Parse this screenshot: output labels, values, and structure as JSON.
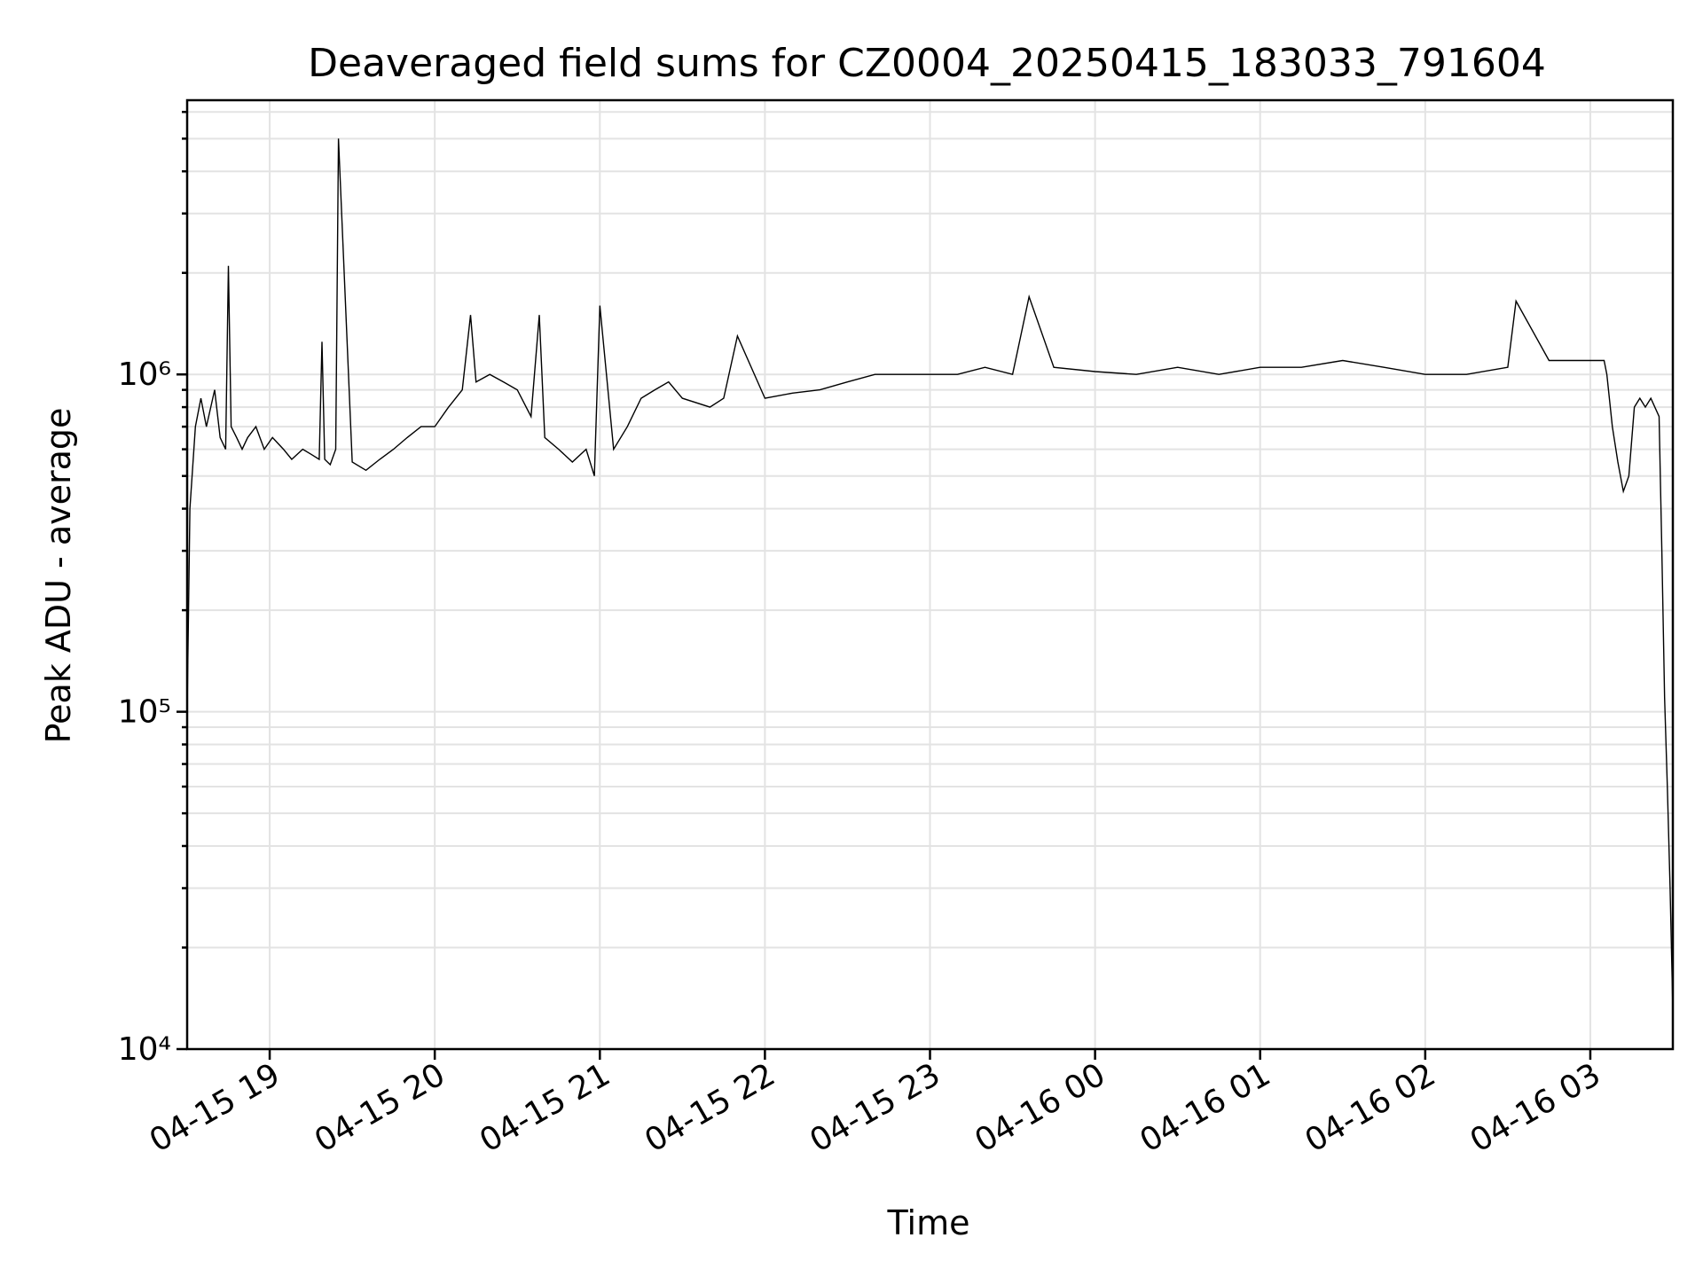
{
  "chart_data": {
    "type": "line",
    "title": "Deaveraged field sums for CZ0004_20250415_183033_791604",
    "xlabel": "Time",
    "ylabel": "Peak ADU - average",
    "x_scale": "time",
    "y_scale": "log",
    "xlim": [
      "2025-04-15 18:30",
      "2025-04-16 03:30"
    ],
    "ylim": [
      10000,
      6500000
    ],
    "grid": true,
    "line_color": "#000000",
    "grid_color": "#e3e3e3",
    "x_ticks": [
      {
        "value": "2025-04-15 19:00",
        "label": "04-15 19"
      },
      {
        "value": "2025-04-15 20:00",
        "label": "04-15 20"
      },
      {
        "value": "2025-04-15 21:00",
        "label": "04-15 21"
      },
      {
        "value": "2025-04-15 22:00",
        "label": "04-15 22"
      },
      {
        "value": "2025-04-15 23:00",
        "label": "04-15 23"
      },
      {
        "value": "2025-04-16 00:00",
        "label": "04-16 00"
      },
      {
        "value": "2025-04-16 01:00",
        "label": "04-16 01"
      },
      {
        "value": "2025-04-16 02:00",
        "label": "04-16 02"
      },
      {
        "value": "2025-04-16 03:00",
        "label": "04-16 03"
      }
    ],
    "y_ticks": [
      {
        "value": 10000,
        "label": "10⁴"
      },
      {
        "value": 100000,
        "label": "10⁵"
      },
      {
        "value": 1000000,
        "label": "10⁶"
      }
    ],
    "series": [
      {
        "x": [
          "2025-04-15 18:30",
          "2025-04-15 18:31",
          "2025-04-15 18:33",
          "2025-04-15 18:35",
          "2025-04-15 18:37",
          "2025-04-15 18:40",
          "2025-04-15 18:42",
          "2025-04-15 18:44",
          "2025-04-15 18:45",
          "2025-04-15 18:46",
          "2025-04-15 18:48",
          "2025-04-15 18:50",
          "2025-04-15 18:52",
          "2025-04-15 18:55",
          "2025-04-15 18:58",
          "2025-04-15 19:01",
          "2025-04-15 19:05",
          "2025-04-15 19:08",
          "2025-04-15 19:12",
          "2025-04-15 19:15",
          "2025-04-15 19:18",
          "2025-04-15 19:19",
          "2025-04-15 19:20",
          "2025-04-15 19:22",
          "2025-04-15 19:24",
          "2025-04-15 19:25",
          "2025-04-15 19:30",
          "2025-04-15 19:35",
          "2025-04-15 19:40",
          "2025-04-15 19:45",
          "2025-04-15 19:50",
          "2025-04-15 19:55",
          "2025-04-15 20:00",
          "2025-04-15 20:05",
          "2025-04-15 20:10",
          "2025-04-15 20:13",
          "2025-04-15 20:15",
          "2025-04-15 20:20",
          "2025-04-15 20:25",
          "2025-04-15 20:30",
          "2025-04-15 20:35",
          "2025-04-15 20:38",
          "2025-04-15 20:40",
          "2025-04-15 20:45",
          "2025-04-15 20:50",
          "2025-04-15 20:55",
          "2025-04-15 20:58",
          "2025-04-15 21:00",
          "2025-04-15 21:05",
          "2025-04-15 21:10",
          "2025-04-15 21:15",
          "2025-04-15 21:20",
          "2025-04-15 21:25",
          "2025-04-15 21:30",
          "2025-04-15 21:40",
          "2025-04-15 21:45",
          "2025-04-15 21:50",
          "2025-04-15 22:00",
          "2025-04-15 22:10",
          "2025-04-15 22:20",
          "2025-04-15 22:30",
          "2025-04-15 22:40",
          "2025-04-15 22:50",
          "2025-04-15 23:00",
          "2025-04-15 23:10",
          "2025-04-15 23:20",
          "2025-04-15 23:30",
          "2025-04-15 23:36",
          "2025-04-15 23:45",
          "2025-04-16 00:00",
          "2025-04-16 00:15",
          "2025-04-16 00:30",
          "2025-04-16 00:45",
          "2025-04-16 01:00",
          "2025-04-16 01:15",
          "2025-04-16 01:30",
          "2025-04-16 01:45",
          "2025-04-16 02:00",
          "2025-04-16 02:15",
          "2025-04-16 02:30",
          "2025-04-16 02:33",
          "2025-04-16 02:45",
          "2025-04-16 02:55",
          "2025-04-16 03:05",
          "2025-04-16 03:06",
          "2025-04-16 03:08",
          "2025-04-16 03:10",
          "2025-04-16 03:12",
          "2025-04-16 03:14",
          "2025-04-16 03:16",
          "2025-04-16 03:18",
          "2025-04-16 03:20",
          "2025-04-16 03:22",
          "2025-04-16 03:25",
          "2025-04-16 03:26",
          "2025-04-16 03:27",
          "2025-04-16 03:28",
          "2025-04-16 03:29",
          "2025-04-16 03:30"
        ],
        "y": [
          100000,
          400000,
          700000,
          850000,
          700000,
          900000,
          650000,
          600000,
          2100000,
          700000,
          650000,
          600000,
          650000,
          700000,
          600000,
          650000,
          600000,
          560000,
          600000,
          580000,
          560000,
          1250000,
          560000,
          540000,
          600000,
          5000000,
          550000,
          520000,
          560000,
          600000,
          650000,
          700000,
          700000,
          800000,
          900000,
          1500000,
          950000,
          1000000,
          950000,
          900000,
          750000,
          1500000,
          650000,
          600000,
          550000,
          600000,
          500000,
          1600000,
          600000,
          700000,
          850000,
          900000,
          950000,
          850000,
          800000,
          850000,
          1300000,
          850000,
          880000,
          900000,
          950000,
          1000000,
          1000000,
          1000000,
          1000000,
          1050000,
          1000000,
          1700000,
          1050000,
          1020000,
          1000000,
          1050000,
          1000000,
          1050000,
          1050000,
          1100000,
          1050000,
          1000000,
          1000000,
          1050000,
          1650000,
          1100000,
          1100000,
          1100000,
          1000000,
          700000,
          550000,
          450000,
          500000,
          800000,
          850000,
          800000,
          850000,
          750000,
          300000,
          110000,
          60000,
          30000,
          13000
        ]
      }
    ]
  }
}
